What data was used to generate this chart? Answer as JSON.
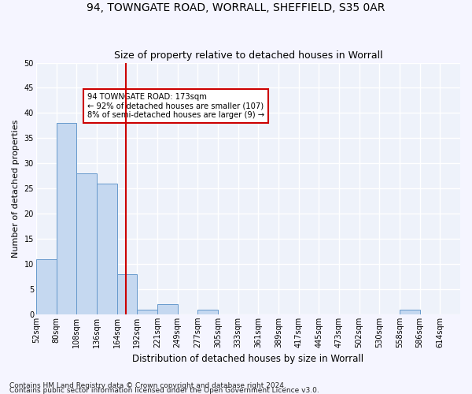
{
  "title1": "94, TOWNGATE ROAD, WORRALL, SHEFFIELD, S35 0AR",
  "title2": "Size of property relative to detached houses in Worrall",
  "xlabel": "Distribution of detached houses by size in Worrall",
  "ylabel": "Number of detached properties",
  "footnote1": "Contains HM Land Registry data © Crown copyright and database right 2024.",
  "footnote2": "Contains public sector information licensed under the Open Government Licence v3.0.",
  "bar_heights": [
    11,
    38,
    28,
    26,
    8,
    1,
    2,
    0,
    1,
    0,
    0,
    0,
    0,
    0,
    0,
    0,
    0,
    0,
    1,
    0,
    0
  ],
  "tick_labels": [
    "52sqm",
    "80sqm",
    "108sqm",
    "136sqm",
    "164sqm",
    "192sqm",
    "221sqm",
    "249sqm",
    "277sqm",
    "305sqm",
    "333sqm",
    "361sqm",
    "389sqm",
    "417sqm",
    "445sqm",
    "473sqm",
    "502sqm",
    "530sqm",
    "558sqm",
    "586sqm",
    "614sqm"
  ],
  "bar_color": "#c5d8f0",
  "bar_edge_color": "#6699cc",
  "vline_x": 4.46,
  "vline_color": "#cc0000",
  "annotation_text": "94 TOWNGATE ROAD: 173sqm\n← 92% of detached houses are smaller (107)\n8% of semi-detached houses are larger (9) →",
  "annotation_box_color": "#cc0000",
  "ylim": [
    0,
    50
  ],
  "yticks": [
    0,
    5,
    10,
    15,
    20,
    25,
    30,
    35,
    40,
    45,
    50
  ],
  "background_color": "#eef2fa",
  "grid_color": "#ffffff",
  "title1_fontsize": 10,
  "title2_fontsize": 9,
  "xlabel_fontsize": 8.5,
  "ylabel_fontsize": 8,
  "tick_fontsize": 7,
  "footnote_fontsize": 6.5,
  "fig_bg": "#f5f5ff"
}
